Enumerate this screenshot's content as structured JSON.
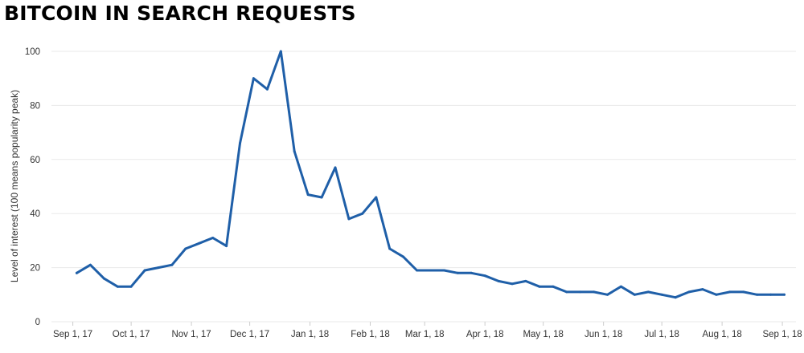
{
  "chart_data": {
    "type": "line",
    "title": "BITCOIN IN SEARCH REQUESTS",
    "xlabel": "",
    "ylabel": "Level of interest (100 means popularity peak)",
    "ylim": [
      0,
      100
    ],
    "yticks": [
      0,
      20,
      40,
      60,
      80,
      100
    ],
    "xlim": [
      "2017-08-21",
      "2018-09-08"
    ],
    "xticks": [
      {
        "date": "2017-09-01",
        "label": "Sep 1, 17"
      },
      {
        "date": "2017-10-01",
        "label": "Oct 1, 17"
      },
      {
        "date": "2017-11-01",
        "label": "Nov 1, 17"
      },
      {
        "date": "2017-12-01",
        "label": "Dec 1, 17"
      },
      {
        "date": "2018-01-01",
        "label": "Jan 1, 18"
      },
      {
        "date": "2018-02-01",
        "label": "Feb 1, 18"
      },
      {
        "date": "2018-03-01",
        "label": "Mar 1, 18"
      },
      {
        "date": "2018-04-01",
        "label": "Apr 1, 18"
      },
      {
        "date": "2018-05-01",
        "label": "May 1, 18"
      },
      {
        "date": "2018-06-01",
        "label": "Jun 1, 18"
      },
      {
        "date": "2018-07-01",
        "label": "Jul 1, 18"
      },
      {
        "date": "2018-08-01",
        "label": "Aug 1, 18"
      },
      {
        "date": "2018-09-01",
        "label": "Sep 1, 18"
      }
    ],
    "grid": {
      "horizontal": true,
      "vertical": false
    },
    "line_color": "#1f5fa8",
    "series": [
      {
        "x": [
          "2017-09-03",
          "2017-09-10",
          "2017-09-17",
          "2017-09-24",
          "2017-10-01",
          "2017-10-08",
          "2017-10-15",
          "2017-10-22",
          "2017-10-29",
          "2017-11-05",
          "2017-11-12",
          "2017-11-19",
          "2017-11-26",
          "2017-12-03",
          "2017-12-10",
          "2017-12-17",
          "2017-12-24",
          "2017-12-31",
          "2018-01-07",
          "2018-01-14",
          "2018-01-21",
          "2018-01-28",
          "2018-02-04",
          "2018-02-11",
          "2018-02-18",
          "2018-02-25",
          "2018-03-04",
          "2018-03-11",
          "2018-03-18",
          "2018-03-25",
          "2018-04-01",
          "2018-04-08",
          "2018-04-15",
          "2018-04-22",
          "2018-04-29",
          "2018-05-06",
          "2018-05-13",
          "2018-05-20",
          "2018-05-27",
          "2018-06-03",
          "2018-06-10",
          "2018-06-17",
          "2018-06-24",
          "2018-07-01",
          "2018-07-08",
          "2018-07-15",
          "2018-07-22",
          "2018-07-29",
          "2018-08-05",
          "2018-08-12",
          "2018-08-19",
          "2018-08-26",
          "2018-09-02"
        ],
        "values": [
          18,
          21,
          16,
          13,
          13,
          19,
          20,
          21,
          27,
          29,
          31,
          28,
          66,
          90,
          86,
          100,
          63,
          47,
          46,
          57,
          38,
          40,
          46,
          27,
          24,
          19,
          19,
          19,
          18,
          18,
          17,
          15,
          14,
          15,
          13,
          13,
          11,
          11,
          11,
          10,
          13,
          10,
          11,
          10,
          9,
          11,
          12,
          10,
          11,
          11,
          10,
          10,
          10
        ]
      }
    ]
  }
}
